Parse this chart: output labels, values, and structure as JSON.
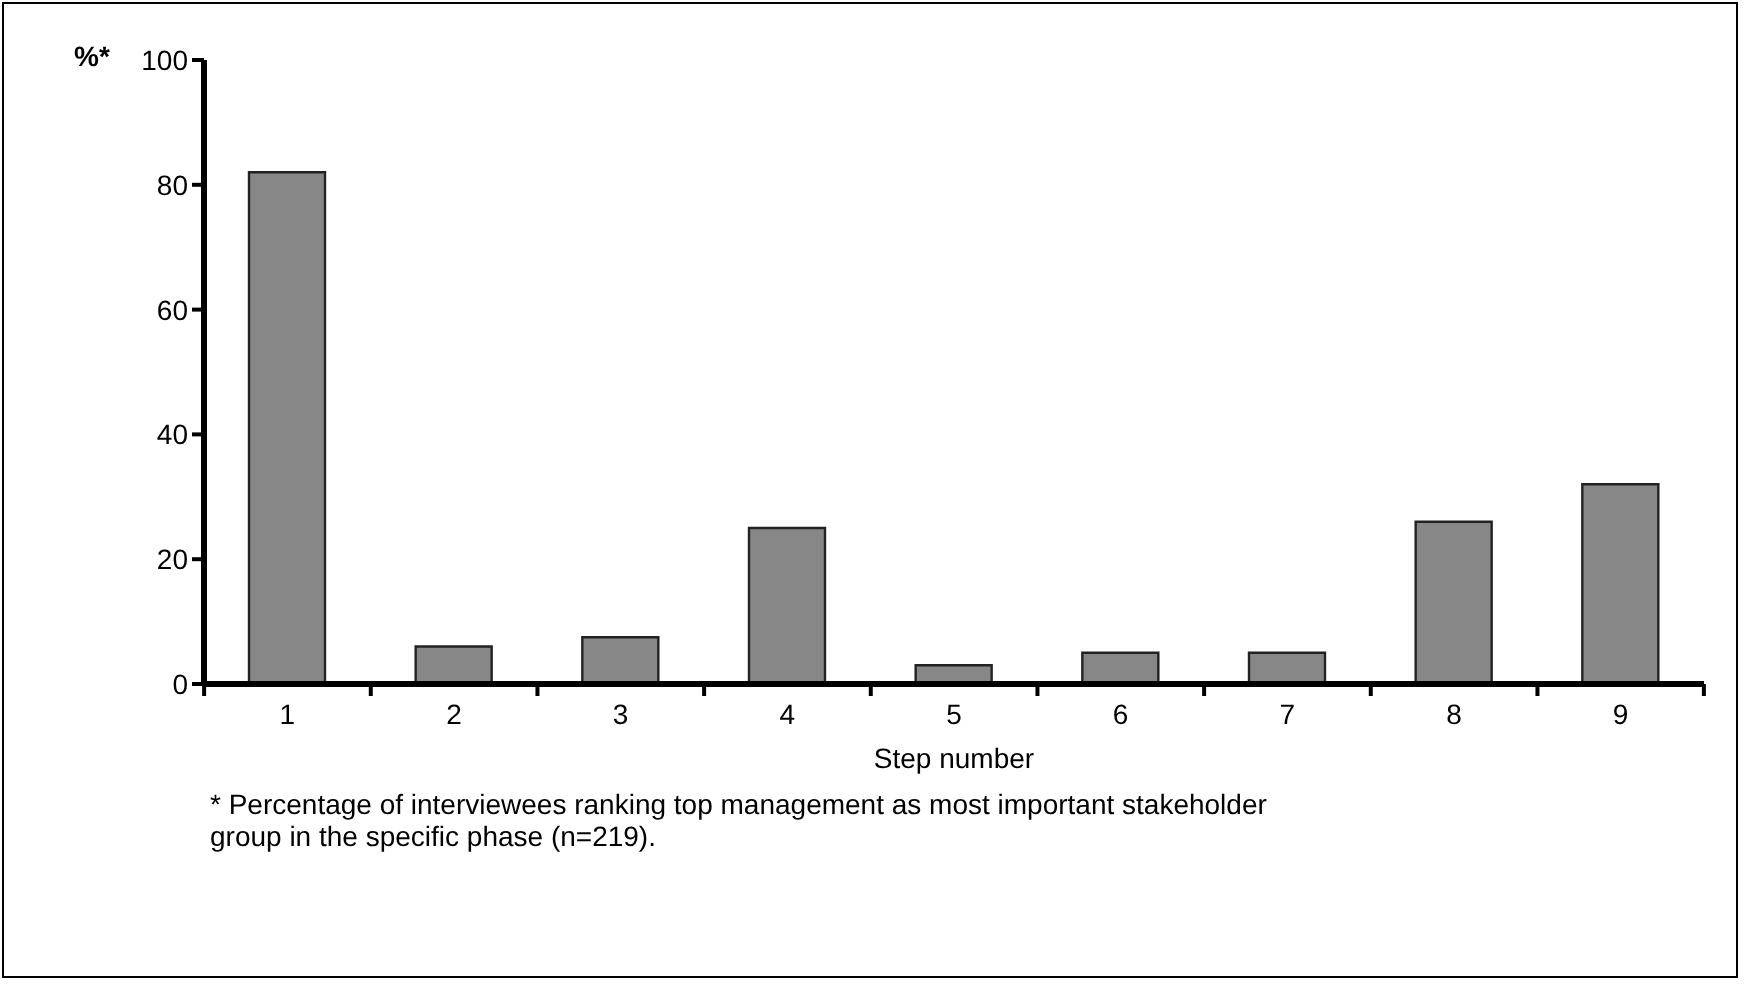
{
  "chart_data": {
    "type": "bar",
    "ylabel": "%*",
    "xlabel": "Step number",
    "categories": [
      "1",
      "2",
      "3",
      "4",
      "5",
      "6",
      "7",
      "8",
      "9"
    ],
    "values": [
      82,
      6,
      7.5,
      25,
      3,
      5,
      5,
      26,
      32
    ],
    "color": "#878787",
    "ylim": [
      0,
      100
    ],
    "yticks": [
      0,
      20,
      40,
      60,
      80,
      100
    ],
    "annotations": [
      "* Percentage of interviewees ranking top management as most important stakeholder group in the specific phase (n=219)."
    ]
  }
}
